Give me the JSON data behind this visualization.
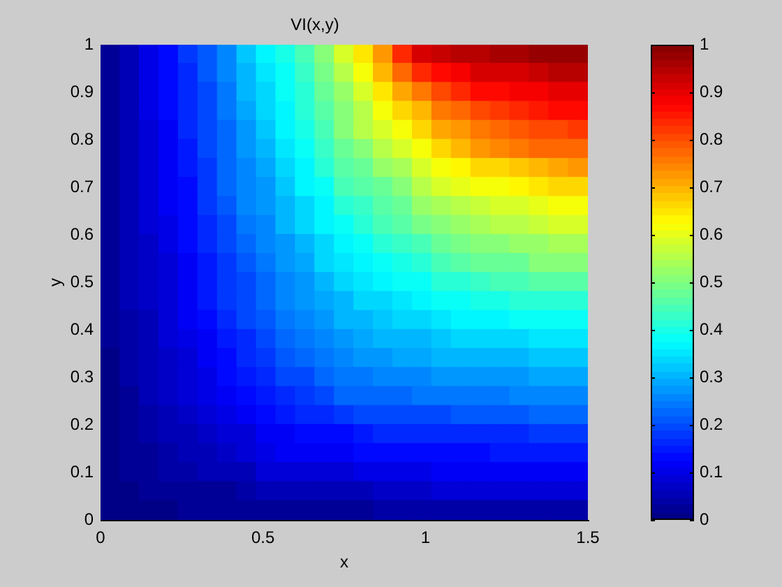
{
  "chart_data": {
    "type": "scatter",
    "title": "VI(x,y)",
    "xlabel": "x",
    "ylabel": "y",
    "marker": "square",
    "xlim": [
      0,
      1.5
    ],
    "xticks": [
      0,
      0.5,
      1,
      1.5
    ],
    "ylim": [
      0,
      1
    ],
    "yticks": [
      0,
      0.1,
      0.2,
      0.3,
      0.4,
      0.5,
      0.6,
      0.7,
      0.8,
      0.9,
      1
    ],
    "clim": [
      0,
      1
    ],
    "cticks": [
      0,
      0.1,
      0.2,
      0.3,
      0.4,
      0.5,
      0.6,
      0.7,
      0.8,
      0.9,
      1
    ],
    "x": [
      0.03,
      0.09,
      0.15,
      0.21,
      0.27,
      0.33,
      0.39,
      0.45,
      0.51,
      0.57,
      0.63,
      0.69,
      0.75,
      0.81,
      0.87,
      0.93,
      0.99,
      1.05,
      1.11,
      1.17,
      1.23,
      1.29,
      1.35,
      1.41,
      1.47,
      0.03,
      0.09,
      0.15,
      0.21,
      0.27,
      0.33,
      0.39,
      0.45,
      0.51,
      0.57,
      0.63,
      0.69,
      0.75,
      0.81,
      0.87,
      0.93,
      0.99,
      1.05,
      1.11,
      1.17,
      1.23,
      1.29,
      1.35,
      1.41,
      1.47,
      0.03,
      0.09,
      0.15,
      0.21,
      0.27,
      0.33,
      0.39,
      0.45,
      0.51,
      0.57,
      0.63,
      0.69,
      0.75,
      0.81,
      0.87,
      0.93,
      0.99,
      1.05,
      1.11,
      1.17,
      1.23,
      1.29,
      1.35,
      1.41,
      1.47,
      0.03,
      0.09,
      0.15,
      0.21,
      0.27,
      0.33,
      0.39,
      0.45,
      0.51,
      0.57,
      0.63,
      0.69,
      0.75,
      0.81,
      0.87,
      0.93,
      0.99,
      1.05,
      1.11,
      1.17,
      1.23,
      1.29,
      1.35,
      1.41,
      1.47,
      0.03,
      0.09,
      0.15,
      0.21,
      0.27,
      0.33,
      0.39,
      0.45,
      0.51,
      0.57,
      0.63,
      0.69,
      0.75,
      0.81,
      0.87,
      0.93,
      0.99,
      1.05,
      1.11,
      1.17,
      1.23,
      1.29,
      1.35,
      1.41,
      1.47,
      0.03,
      0.09,
      0.15,
      0.21,
      0.27,
      0.33,
      0.39,
      0.45,
      0.51,
      0.57,
      0.63,
      0.69,
      0.75,
      0.81,
      0.87,
      0.93,
      0.99,
      1.05,
      1.11,
      1.17,
      1.23,
      1.29,
      1.35,
      1.41,
      1.47,
      0.03,
      0.09,
      0.15,
      0.21,
      0.27,
      0.33,
      0.39,
      0.45,
      0.51,
      0.57,
      0.63,
      0.69,
      0.75,
      0.81,
      0.87,
      0.93,
      0.99,
      1.05,
      1.11,
      1.17,
      1.23,
      1.29,
      1.35,
      1.41,
      1.47,
      0.03,
      0.09,
      0.15,
      0.21,
      0.27,
      0.33,
      0.39,
      0.45,
      0.51,
      0.57,
      0.63,
      0.69,
      0.75,
      0.81,
      0.87,
      0.93,
      0.99,
      1.05,
      1.11,
      1.17,
      1.23,
      1.29,
      1.35,
      1.41,
      1.47,
      0.03,
      0.09,
      0.15,
      0.21,
      0.27,
      0.33,
      0.39,
      0.45,
      0.51,
      0.57,
      0.63,
      0.69,
      0.75,
      0.81,
      0.87,
      0.93,
      0.99,
      1.05,
      1.11,
      1.17,
      1.23,
      1.29,
      1.35,
      1.41,
      1.47,
      0.03,
      0.09,
      0.15,
      0.21,
      0.27,
      0.33,
      0.39,
      0.45,
      0.51,
      0.57,
      0.63,
      0.69,
      0.75,
      0.81,
      0.87,
      0.93,
      0.99,
      1.05,
      1.11,
      1.17,
      1.23,
      1.29,
      1.35,
      1.41,
      1.47,
      0.03,
      0.09,
      0.15,
      0.21,
      0.27,
      0.33,
      0.39,
      0.45,
      0.51,
      0.57,
      0.63,
      0.69,
      0.75,
      0.81,
      0.87,
      0.93,
      0.99,
      1.05,
      1.11,
      1.17,
      1.23,
      1.29,
      1.35,
      1.41,
      1.47,
      0.03,
      0.09,
      0.15,
      0.21,
      0.27,
      0.33,
      0.39,
      0.45,
      0.51,
      0.57,
      0.63,
      0.69,
      0.75,
      0.81,
      0.87,
      0.93,
      0.99,
      1.05,
      1.11,
      1.17,
      1.23,
      1.29,
      1.35,
      1.41,
      1.47,
      0.03,
      0.09,
      0.15,
      0.21,
      0.27,
      0.33,
      0.39,
      0.45,
      0.51,
      0.57,
      0.63,
      0.69,
      0.75,
      0.81,
      0.87,
      0.93,
      0.99,
      1.05,
      1.11,
      1.17,
      1.23,
      1.29,
      1.35,
      1.41,
      1.47,
      0.03,
      0.09,
      0.15,
      0.21,
      0.27,
      0.33,
      0.39,
      0.45,
      0.51,
      0.57,
      0.63,
      0.69,
      0.75,
      0.81,
      0.87,
      0.93,
      0.99,
      1.05,
      1.11,
      1.17,
      1.23,
      1.29,
      1.35,
      1.41,
      1.47,
      0.03,
      0.09,
      0.15,
      0.21,
      0.27,
      0.33,
      0.39,
      0.45,
      0.51,
      0.57,
      0.63,
      0.69,
      0.75,
      0.81,
      0.87,
      0.93,
      0.99,
      1.05,
      1.11,
      1.17,
      1.23,
      1.29,
      1.35,
      1.41,
      1.47,
      0.03,
      0.09,
      0.15,
      0.21,
      0.27,
      0.33,
      0.39,
      0.45,
      0.51,
      0.57,
      0.63,
      0.69,
      0.75,
      0.81,
      0.87,
      0.93,
      0.99,
      1.05,
      1.11,
      1.17,
      1.23,
      1.29,
      1.35,
      1.41,
      1.47,
      0.03,
      0.09,
      0.15,
      0.21,
      0.27,
      0.33,
      0.39,
      0.45,
      0.51,
      0.57,
      0.63,
      0.69,
      0.75,
      0.81,
      0.87,
      0.93,
      0.99,
      1.05,
      1.11,
      1.17,
      1.23,
      1.29,
      1.35,
      1.41,
      1.47,
      0.03,
      0.09,
      0.15,
      0.21,
      0.27,
      0.33,
      0.39,
      0.45,
      0.51,
      0.57,
      0.63,
      0.69,
      0.75,
      0.81,
      0.87,
      0.93,
      0.99,
      1.05,
      1.11,
      1.17,
      1.23,
      1.29,
      1.35,
      1.41,
      1.47,
      0.03,
      0.09,
      0.15,
      0.21,
      0.27,
      0.33,
      0.39,
      0.45,
      0.51,
      0.57,
      0.63,
      0.69,
      0.75,
      0.81,
      0.87,
      0.93,
      0.99,
      1.05,
      1.11,
      1.17,
      1.23,
      1.29,
      1.35,
      1.41,
      1.47,
      0.03,
      0.09,
      0.15,
      0.21,
      0.27,
      0.33,
      0.39,
      0.45,
      0.51,
      0.57,
      0.63,
      0.69,
      0.75,
      0.81,
      0.87,
      0.93,
      0.99,
      1.05,
      1.11,
      1.17,
      1.23,
      1.29,
      1.35,
      1.41,
      1.47,
      0.03,
      0.09,
      0.15,
      0.21,
      0.27,
      0.33,
      0.39,
      0.45,
      0.51,
      0.57,
      0.63,
      0.69,
      0.75,
      0.81,
      0.87,
      0.93,
      0.99,
      1.05,
      1.11,
      1.17,
      1.23,
      1.29,
      1.35,
      1.41,
      1.47,
      0.03,
      0.09,
      0.15,
      0.21,
      0.27,
      0.33,
      0.39,
      0.45,
      0.51,
      0.57,
      0.63,
      0.69,
      0.75,
      0.81,
      0.87,
      0.93,
      0.99,
      1.05,
      1.11,
      1.17,
      1.23,
      1.29,
      1.35,
      1.41,
      1.47,
      0.03,
      0.09,
      0.15,
      0.21,
      0.27,
      0.33,
      0.39,
      0.45,
      0.51,
      0.57,
      0.63,
      0.69,
      0.75,
      0.81,
      0.87,
      0.93,
      0.99,
      1.05,
      1.11,
      1.17,
      1.23,
      1.29,
      1.35,
      1.41,
      1.47,
      0.03,
      0.09,
      0.15,
      0.21,
      0.27,
      0.33,
      0.39,
      0.45,
      0.51,
      0.57,
      0.63,
      0.69,
      0.75,
      0.81,
      0.87,
      0.93,
      0.99,
      1.05,
      1.11,
      1.17,
      1.23,
      1.29,
      1.35,
      1.41,
      1.47,
      0.03,
      0.09,
      0.15,
      0.21,
      0.27,
      0.33,
      0.39,
      0.45,
      0.51,
      0.57,
      0.63,
      0.69,
      0.75,
      0.81,
      0.87,
      0.93,
      0.99,
      1.05,
      1.11,
      1.17,
      1.23,
      1.29,
      1.35,
      1.41,
      1.47
    ],
    "values": [
      0.98,
      0.98,
      0.98,
      0.98,
      0.98,
      0.98,
      0.98,
      0.98,
      0.98,
      0.98,
      0.98,
      0.98,
      0.98,
      0.98,
      0.98,
      0.98,
      0.98,
      0.98,
      0.98,
      0.98,
      0.98,
      0.98,
      0.98,
      0.98,
      0.98,
      0.94,
      0.94,
      0.94,
      0.94,
      0.94,
      0.94,
      0.94,
      0.94,
      0.94,
      0.94,
      0.94,
      0.94,
      0.94,
      0.94,
      0.94,
      0.94,
      0.94,
      0.94,
      0.94,
      0.94,
      0.94,
      0.94,
      0.94,
      0.94,
      0.94,
      0.9,
      0.9,
      0.9,
      0.9,
      0.9,
      0.9,
      0.9,
      0.9,
      0.9,
      0.9,
      0.9,
      0.9,
      0.9,
      0.9,
      0.9,
      0.9,
      0.9,
      0.9,
      0.9,
      0.9,
      0.9,
      0.9,
      0.9,
      0.9,
      0.9,
      0.86,
      0.86,
      0.86,
      0.86,
      0.86,
      0.86,
      0.86,
      0.86,
      0.86,
      0.86,
      0.86,
      0.86,
      0.86,
      0.86,
      0.86,
      0.86,
      0.86,
      0.86,
      0.86,
      0.86,
      0.86,
      0.86,
      0.86,
      0.86,
      0.86,
      0.82,
      0.82,
      0.82,
      0.82,
      0.82,
      0.82,
      0.82,
      0.82,
      0.82,
      0.82,
      0.82,
      0.82,
      0.82,
      0.82,
      0.82,
      0.82,
      0.82,
      0.82,
      0.82,
      0.82,
      0.82,
      0.82,
      0.82,
      0.82,
      0.82,
      0.78,
      0.78,
      0.78,
      0.78,
      0.78,
      0.78,
      0.78,
      0.78,
      0.78,
      0.78,
      0.78,
      0.78,
      0.78,
      0.78,
      0.78,
      0.78,
      0.78,
      0.78,
      0.78,
      0.78,
      0.78,
      0.78,
      0.78,
      0.78,
      0.78,
      0.74,
      0.74,
      0.74,
      0.74,
      0.74,
      0.74,
      0.74,
      0.74,
      0.74,
      0.74,
      0.74,
      0.74,
      0.74,
      0.74,
      0.74,
      0.74,
      0.74,
      0.74,
      0.74,
      0.74,
      0.74,
      0.74,
      0.74,
      0.74,
      0.74,
      0.7,
      0.7,
      0.7,
      0.7,
      0.7,
      0.7,
      0.7,
      0.7,
      0.7,
      0.7,
      0.7,
      0.7,
      0.7,
      0.7,
      0.7,
      0.7,
      0.7,
      0.7,
      0.7,
      0.7,
      0.7,
      0.7,
      0.7,
      0.7,
      0.7,
      0.66,
      0.66,
      0.66,
      0.66,
      0.66,
      0.66,
      0.66,
      0.66,
      0.66,
      0.66,
      0.66,
      0.66,
      0.66,
      0.66,
      0.66,
      0.66,
      0.66,
      0.66,
      0.66,
      0.66,
      0.66,
      0.66,
      0.66,
      0.66,
      0.66,
      0.62,
      0.62,
      0.62,
      0.62,
      0.62,
      0.62,
      0.62,
      0.62,
      0.62,
      0.62,
      0.62,
      0.62,
      0.62,
      0.62,
      0.62,
      0.62,
      0.62,
      0.62,
      0.62,
      0.62,
      0.62,
      0.62,
      0.62,
      0.62,
      0.62,
      0.58,
      0.58,
      0.58,
      0.58,
      0.58,
      0.58,
      0.58,
      0.58,
      0.58,
      0.58,
      0.58,
      0.58,
      0.58,
      0.58,
      0.58,
      0.58,
      0.58,
      0.58,
      0.58,
      0.58,
      0.58,
      0.58,
      0.58,
      0.58,
      0.58,
      0.54,
      0.54,
      0.54,
      0.54,
      0.54,
      0.54,
      0.54,
      0.54,
      0.54,
      0.54,
      0.54,
      0.54,
      0.54,
      0.54,
      0.54,
      0.54,
      0.54,
      0.54,
      0.54,
      0.54,
      0.54,
      0.54,
      0.54,
      0.54,
      0.54,
      0.5,
      0.5,
      0.5,
      0.5,
      0.5,
      0.5,
      0.5,
      0.5,
      0.5,
      0.5,
      0.5,
      0.5,
      0.5,
      0.5,
      0.5,
      0.5,
      0.5,
      0.5,
      0.5,
      0.5,
      0.5,
      0.5,
      0.5,
      0.5,
      0.5,
      0.46,
      0.46,
      0.46,
      0.46,
      0.46,
      0.46,
      0.46,
      0.46,
      0.46,
      0.46,
      0.46,
      0.46,
      0.46,
      0.46,
      0.46,
      0.46,
      0.46,
      0.46,
      0.46,
      0.46,
      0.46,
      0.46,
      0.46,
      0.46,
      0.46,
      0.42,
      0.42,
      0.42,
      0.42,
      0.42,
      0.42,
      0.42,
      0.42,
      0.42,
      0.42,
      0.42,
      0.42,
      0.42,
      0.42,
      0.42,
      0.42,
      0.42,
      0.42,
      0.42,
      0.42,
      0.42,
      0.42,
      0.42,
      0.42,
      0.42,
      0.38,
      0.38,
      0.38,
      0.38,
      0.38,
      0.38,
      0.38,
      0.38,
      0.38,
      0.38,
      0.38,
      0.38,
      0.38,
      0.38,
      0.38,
      0.38,
      0.38,
      0.38,
      0.38,
      0.38,
      0.38,
      0.38,
      0.38,
      0.38,
      0.38,
      0.34,
      0.34,
      0.34,
      0.34,
      0.34,
      0.34,
      0.34,
      0.34,
      0.34,
      0.34,
      0.34,
      0.34,
      0.34,
      0.34,
      0.34,
      0.34,
      0.34,
      0.34,
      0.34,
      0.34,
      0.34,
      0.34,
      0.34,
      0.34,
      0.34,
      0.3,
      0.3,
      0.3,
      0.3,
      0.3,
      0.3,
      0.3,
      0.3,
      0.3,
      0.3,
      0.3,
      0.3,
      0.3,
      0.3,
      0.3,
      0.3,
      0.3,
      0.3,
      0.3,
      0.3,
      0.3,
      0.3,
      0.3,
      0.3,
      0.3,
      0.26,
      0.26,
      0.26,
      0.26,
      0.26,
      0.26,
      0.26,
      0.26,
      0.26,
      0.26,
      0.26,
      0.26,
      0.26,
      0.26,
      0.26,
      0.26,
      0.26,
      0.26,
      0.26,
      0.26,
      0.26,
      0.26,
      0.26,
      0.26,
      0.26,
      0.22,
      0.22,
      0.22,
      0.22,
      0.22,
      0.22,
      0.22,
      0.22,
      0.22,
      0.22,
      0.22,
      0.22,
      0.22,
      0.22,
      0.22,
      0.22,
      0.22,
      0.22,
      0.22,
      0.22,
      0.22,
      0.22,
      0.22,
      0.22,
      0.22,
      0.18,
      0.18,
      0.18,
      0.18,
      0.18,
      0.18,
      0.18,
      0.18,
      0.18,
      0.18,
      0.18,
      0.18,
      0.18,
      0.18,
      0.18,
      0.18,
      0.18,
      0.18,
      0.18,
      0.18,
      0.18,
      0.18,
      0.18,
      0.18,
      0.18,
      0.14,
      0.14,
      0.14,
      0.14,
      0.14,
      0.14,
      0.14,
      0.14,
      0.14,
      0.14,
      0.14,
      0.14,
      0.14,
      0.14,
      0.14,
      0.14,
      0.14,
      0.14,
      0.14,
      0.14,
      0.14,
      0.14,
      0.14,
      0.14,
      0.14,
      0.1,
      0.1,
      0.1,
      0.1,
      0.1,
      0.1,
      0.1,
      0.1,
      0.1,
      0.1,
      0.1,
      0.1,
      0.1,
      0.1,
      0.1,
      0.1,
      0.1,
      0.1,
      0.1,
      0.1,
      0.1,
      0.1,
      0.1,
      0.1,
      0.1,
      0.06,
      0.06,
      0.06,
      0.06,
      0.06,
      0.06,
      0.06,
      0.06,
      0.06,
      0.06,
      0.06,
      0.06,
      0.06,
      0.06,
      0.06,
      0.06,
      0.06,
      0.06,
      0.06,
      0.06,
      0.06,
      0.06,
      0.06,
      0.06,
      0.06,
      0.02,
      0.02,
      0.02,
      0.02,
      0.02,
      0.02,
      0.02,
      0.02,
      0.02,
      0.02,
      0.02,
      0.02,
      0.02,
      0.02,
      0.02,
      0.02,
      0.02,
      0.02,
      0.02,
      0.02,
      0.02,
      0.02,
      0.02,
      0.02,
      0.02
    ],
    "cvalues": [
      0.02,
      0.06,
      0.1,
      0.14,
      0.18,
      0.21,
      0.26,
      0.32,
      0.36,
      0.4,
      0.44,
      0.51,
      0.58,
      0.65,
      0.73,
      0.84,
      0.92,
      0.93,
      0.94,
      0.95,
      0.96,
      0.96,
      0.97,
      0.98,
      0.98,
      0.02,
      0.06,
      0.1,
      0.13,
      0.17,
      0.21,
      0.25,
      0.31,
      0.35,
      0.39,
      0.43,
      0.49,
      0.55,
      0.62,
      0.69,
      0.77,
      0.83,
      0.87,
      0.89,
      0.91,
      0.92,
      0.92,
      0.93,
      0.94,
      0.94,
      0.02,
      0.06,
      0.1,
      0.13,
      0.16,
      0.2,
      0.24,
      0.3,
      0.34,
      0.38,
      0.42,
      0.47,
      0.53,
      0.59,
      0.65,
      0.71,
      0.76,
      0.81,
      0.83,
      0.86,
      0.87,
      0.88,
      0.89,
      0.9,
      0.9,
      0.02,
      0.06,
      0.1,
      0.13,
      0.16,
      0.2,
      0.24,
      0.29,
      0.33,
      0.37,
      0.41,
      0.46,
      0.51,
      0.56,
      0.61,
      0.66,
      0.7,
      0.75,
      0.78,
      0.8,
      0.82,
      0.83,
      0.85,
      0.86,
      0.87,
      0.02,
      0.06,
      0.09,
      0.12,
      0.16,
      0.19,
      0.23,
      0.28,
      0.32,
      0.36,
      0.4,
      0.45,
      0.5,
      0.55,
      0.59,
      0.62,
      0.67,
      0.71,
      0.73,
      0.76,
      0.78,
      0.79,
      0.8,
      0.81,
      0.82,
      0.02,
      0.05,
      0.09,
      0.12,
      0.15,
      0.19,
      0.23,
      0.27,
      0.3,
      0.35,
      0.38,
      0.43,
      0.48,
      0.51,
      0.55,
      0.58,
      0.62,
      0.66,
      0.69,
      0.72,
      0.74,
      0.75,
      0.77,
      0.77,
      0.78,
      0.02,
      0.05,
      0.09,
      0.11,
      0.15,
      0.18,
      0.22,
      0.26,
      0.29,
      0.34,
      0.37,
      0.41,
      0.46,
      0.48,
      0.52,
      0.54,
      0.58,
      0.62,
      0.64,
      0.66,
      0.67,
      0.68,
      0.7,
      0.71,
      0.72,
      0.02,
      0.05,
      0.08,
      0.11,
      0.14,
      0.18,
      0.22,
      0.26,
      0.28,
      0.32,
      0.36,
      0.39,
      0.44,
      0.46,
      0.48,
      0.51,
      0.55,
      0.58,
      0.6,
      0.61,
      0.62,
      0.63,
      0.65,
      0.66,
      0.66,
      0.02,
      0.05,
      0.08,
      0.11,
      0.14,
      0.18,
      0.21,
      0.25,
      0.27,
      0.31,
      0.34,
      0.37,
      0.41,
      0.43,
      0.46,
      0.48,
      0.52,
      0.54,
      0.56,
      0.57,
      0.58,
      0.59,
      0.6,
      0.61,
      0.62,
      0.02,
      0.05,
      0.08,
      0.1,
      0.14,
      0.17,
      0.2,
      0.24,
      0.26,
      0.3,
      0.33,
      0.36,
      0.39,
      0.41,
      0.44,
      0.46,
      0.49,
      0.51,
      0.53,
      0.54,
      0.55,
      0.56,
      0.57,
      0.58,
      0.58,
      0.02,
      0.05,
      0.07,
      0.1,
      0.13,
      0.16,
      0.19,
      0.22,
      0.25,
      0.28,
      0.31,
      0.34,
      0.36,
      0.38,
      0.41,
      0.43,
      0.45,
      0.47,
      0.49,
      0.5,
      0.51,
      0.52,
      0.53,
      0.54,
      0.54,
      0.02,
      0.05,
      0.07,
      0.09,
      0.12,
      0.15,
      0.18,
      0.21,
      0.24,
      0.27,
      0.29,
      0.33,
      0.35,
      0.37,
      0.39,
      0.4,
      0.42,
      0.44,
      0.46,
      0.47,
      0.48,
      0.48,
      0.5,
      0.5,
      0.5,
      0.02,
      0.05,
      0.07,
      0.09,
      0.12,
      0.15,
      0.18,
      0.2,
      0.22,
      0.26,
      0.28,
      0.31,
      0.33,
      0.35,
      0.36,
      0.38,
      0.39,
      0.41,
      0.42,
      0.43,
      0.44,
      0.44,
      0.46,
      0.46,
      0.46,
      0.02,
      0.05,
      0.07,
      0.09,
      0.12,
      0.15,
      0.18,
      0.2,
      0.22,
      0.25,
      0.27,
      0.29,
      0.31,
      0.33,
      0.34,
      0.35,
      0.36,
      0.38,
      0.39,
      0.4,
      0.4,
      0.41,
      0.42,
      0.42,
      0.42,
      0.02,
      0.04,
      0.06,
      0.08,
      0.11,
      0.14,
      0.17,
      0.19,
      0.21,
      0.24,
      0.26,
      0.28,
      0.3,
      0.31,
      0.32,
      0.33,
      0.34,
      0.35,
      0.36,
      0.37,
      0.37,
      0.38,
      0.39,
      0.39,
      0.39,
      0.02,
      0.04,
      0.06,
      0.08,
      0.1,
      0.12,
      0.15,
      0.17,
      0.19,
      0.22,
      0.24,
      0.26,
      0.28,
      0.29,
      0.3,
      0.3,
      0.31,
      0.32,
      0.33,
      0.33,
      0.34,
      0.34,
      0.35,
      0.35,
      0.35,
      0.01,
      0.04,
      0.06,
      0.07,
      0.09,
      0.11,
      0.14,
      0.16,
      0.18,
      0.21,
      0.23,
      0.24,
      0.26,
      0.27,
      0.28,
      0.29,
      0.29,
      0.3,
      0.3,
      0.31,
      0.31,
      0.31,
      0.32,
      0.32,
      0.32,
      0.01,
      0.04,
      0.06,
      0.07,
      0.08,
      0.1,
      0.13,
      0.15,
      0.17,
      0.19,
      0.2,
      0.22,
      0.24,
      0.24,
      0.26,
      0.26,
      0.26,
      0.28,
      0.28,
      0.28,
      0.28,
      0.28,
      0.29,
      0.29,
      0.29,
      0.01,
      0.03,
      0.05,
      0.07,
      0.08,
      0.1,
      0.11,
      0.13,
      0.15,
      0.17,
      0.18,
      0.2,
      0.22,
      0.22,
      0.22,
      0.23,
      0.24,
      0.24,
      0.24,
      0.24,
      0.24,
      0.25,
      0.26,
      0.26,
      0.26,
      0.01,
      0.03,
      0.04,
      0.06,
      0.07,
      0.09,
      0.1,
      0.12,
      0.14,
      0.15,
      0.16,
      0.17,
      0.18,
      0.19,
      0.19,
      0.2,
      0.2,
      0.2,
      0.21,
      0.21,
      0.21,
      0.21,
      0.22,
      0.22,
      0.22,
      0.01,
      0.02,
      0.04,
      0.05,
      0.06,
      0.07,
      0.08,
      0.09,
      0.11,
      0.12,
      0.13,
      0.13,
      0.14,
      0.15,
      0.16,
      0.16,
      0.16,
      0.16,
      0.17,
      0.17,
      0.17,
      0.17,
      0.18,
      0.18,
      0.18,
      0.01,
      0.02,
      0.03,
      0.04,
      0.05,
      0.06,
      0.07,
      0.08,
      0.1,
      0.11,
      0.11,
      0.12,
      0.12,
      0.13,
      0.13,
      0.14,
      0.14,
      0.14,
      0.14,
      0.14,
      0.15,
      0.15,
      0.15,
      0.15,
      0.15,
      0.01,
      0.02,
      0.02,
      0.04,
      0.04,
      0.05,
      0.06,
      0.06,
      0.08,
      0.08,
      0.08,
      0.09,
      0.09,
      0.1,
      0.1,
      0.1,
      0.1,
      0.11,
      0.11,
      0.11,
      0.12,
      0.12,
      0.12,
      0.12,
      0.12,
      0.01,
      0.01,
      0.02,
      0.02,
      0.03,
      0.03,
      0.03,
      0.04,
      0.05,
      0.05,
      0.05,
      0.06,
      0.06,
      0.06,
      0.07,
      0.07,
      0.07,
      0.08,
      0.08,
      0.08,
      0.08,
      0.08,
      0.08,
      0.08,
      0.08,
      0.01,
      0.01,
      0.01,
      0.01,
      0.02,
      0.02,
      0.02,
      0.02,
      0.03,
      0.03,
      0.03,
      0.03,
      0.03,
      0.03,
      0.04,
      0.04,
      0.04,
      0.04,
      0.04,
      0.04,
      0.04,
      0.04,
      0.04,
      0.04,
      0.04
    ]
  }
}
